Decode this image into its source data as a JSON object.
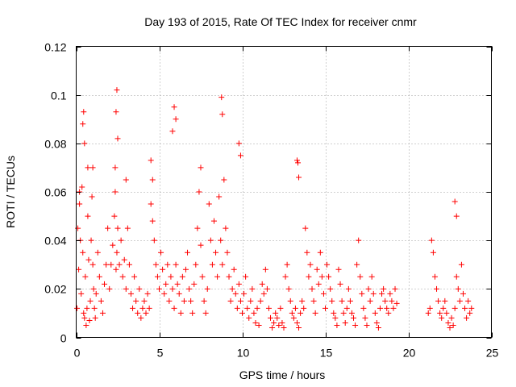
{
  "chart_data": {
    "type": "scatter",
    "title": "Day 193 of 2015, Rate Of TEC Index for receiver cnmr",
    "xlabel": "GPS time / hours",
    "ylabel": "ROTI / TECUs",
    "xlim": [
      0,
      25
    ],
    "ylim": [
      0,
      0.12
    ],
    "x_ticks": [
      0,
      5,
      10,
      15,
      20,
      25
    ],
    "y_ticks": [
      0,
      0.02,
      0.04,
      0.06,
      0.08,
      0.1,
      0.12
    ],
    "x_tick_labels": [
      "0",
      "5",
      "10",
      "15",
      "20",
      "25"
    ],
    "y_tick_labels": [
      "0",
      "0.02",
      "0.04",
      "0.06",
      "0.08",
      "0.1",
      "0.12"
    ],
    "grid": true,
    "marker": "+",
    "colors": {
      "points": "#ff0000",
      "grid": "#a0a0a0",
      "axis": "#000000"
    },
    "series": [
      {
        "x": [
          0.05,
          0.1,
          0.15,
          0.2,
          0.25,
          0.3,
          0.35,
          0.4,
          0.45,
          0.5,
          0.55,
          0.6,
          0.65,
          0.7,
          0.75,
          0.8,
          0.85,
          0.9,
          0.95,
          1.0,
          1.05,
          1.1,
          1.15,
          1.2,
          1.3,
          1.4,
          1.5,
          1.6,
          1.7,
          1.8,
          1.9,
          2.0,
          2.1,
          2.2,
          2.3,
          2.35,
          2.4,
          2.45,
          2.5,
          2.6,
          2.7,
          2.8,
          2.9,
          3.0,
          3.1,
          3.2,
          3.3,
          3.4,
          3.5,
          3.6,
          3.7,
          3.8,
          3.9,
          4.0,
          4.1,
          4.2,
          4.3,
          4.4,
          4.5,
          4.6,
          4.7,
          4.8,
          4.9,
          5.0,
          5.1,
          5.2,
          5.3,
          5.4,
          5.5,
          5.6,
          5.7,
          5.8,
          5.9,
          6.0,
          6.1,
          6.2,
          6.3,
          6.4,
          6.5,
          6.6,
          6.7,
          6.8,
          6.9,
          7.0,
          7.1,
          7.2,
          7.3,
          7.4,
          7.5,
          7.6,
          7.7,
          7.8,
          7.9,
          8.0,
          8.1,
          8.2,
          8.3,
          8.4,
          8.5,
          8.6,
          8.7,
          8.8,
          8.9,
          9.0,
          9.1,
          9.2,
          9.3,
          9.4,
          9.5,
          9.6,
          9.7,
          9.8,
          9.9,
          10.0,
          10.1,
          10.2,
          10.3,
          10.4,
          10.5,
          10.6,
          10.7,
          10.8,
          10.9,
          11.0,
          11.1,
          11.2,
          11.3,
          11.4,
          11.5,
          11.6,
          11.7,
          11.8,
          11.9,
          12.0,
          12.1,
          12.2,
          12.3,
          12.4,
          12.5,
          12.6,
          12.7,
          12.8,
          12.9,
          13.0,
          13.1,
          13.2,
          13.3,
          13.4,
          13.5,
          13.6,
          13.7,
          13.8,
          13.9,
          14.0,
          14.1,
          14.2,
          14.3,
          14.4,
          14.5,
          14.6,
          14.7,
          14.8,
          14.9,
          15.0,
          15.1,
          15.2,
          15.3,
          15.4,
          15.5,
          15.6,
          15.7,
          15.8,
          15.9,
          16.0,
          16.1,
          16.2,
          16.3,
          16.4,
          16.5,
          16.6,
          16.7,
          16.8,
          16.9,
          17.0,
          17.1,
          17.2,
          17.3,
          17.4,
          17.5,
          17.6,
          17.7,
          17.8,
          17.9,
          18.0,
          18.1,
          18.2,
          18.3,
          18.4,
          18.5,
          18.6,
          18.7,
          18.8,
          18.9,
          19.0,
          19.1,
          19.2,
          19.3,
          21.2,
          21.3,
          21.4,
          21.5,
          21.6,
          21.7,
          21.8,
          21.9,
          22.0,
          22.1,
          22.2,
          22.3,
          22.4,
          22.5,
          22.6,
          22.7,
          22.8,
          22.9,
          23.0,
          23.1,
          23.2,
          23.3,
          23.4,
          23.5,
          23.6,
          23.7,
          23.8,
          0.4,
          0.45,
          0.5,
          2.4,
          2.45,
          2.5,
          2.35,
          5.8,
          5.9,
          6.0,
          8.75,
          8.8,
          9.8,
          9.9,
          13.3,
          13.35,
          13.4,
          22.8,
          22.9,
          4.5,
          4.6,
          7.5,
          1.0,
          0.7,
          3.0,
          0.2
        ],
        "y": [
          0.012,
          0.045,
          0.028,
          0.055,
          0.04,
          0.018,
          0.062,
          0.035,
          0.01,
          0.008,
          0.025,
          0.005,
          0.012,
          0.05,
          0.032,
          0.007,
          0.015,
          0.04,
          0.058,
          0.03,
          0.02,
          0.012,
          0.008,
          0.018,
          0.035,
          0.025,
          0.015,
          0.01,
          0.022,
          0.03,
          0.045,
          0.02,
          0.03,
          0.038,
          0.05,
          0.06,
          0.028,
          0.035,
          0.045,
          0.03,
          0.04,
          0.025,
          0.032,
          0.02,
          0.045,
          0.03,
          0.018,
          0.012,
          0.025,
          0.015,
          0.01,
          0.02,
          0.008,
          0.012,
          0.015,
          0.01,
          0.018,
          0.012,
          0.055,
          0.048,
          0.04,
          0.03,
          0.025,
          0.02,
          0.035,
          0.028,
          0.018,
          0.022,
          0.03,
          0.015,
          0.025,
          0.02,
          0.012,
          0.03,
          0.022,
          0.018,
          0.01,
          0.025,
          0.015,
          0.028,
          0.035,
          0.02,
          0.015,
          0.01,
          0.022,
          0.03,
          0.045,
          0.06,
          0.038,
          0.025,
          0.015,
          0.01,
          0.02,
          0.055,
          0.04,
          0.03,
          0.048,
          0.035,
          0.025,
          0.058,
          0.04,
          0.03,
          0.065,
          0.045,
          0.035,
          0.025,
          0.015,
          0.02,
          0.028,
          0.018,
          0.012,
          0.022,
          0.015,
          0.01,
          0.018,
          0.025,
          0.012,
          0.008,
          0.015,
          0.02,
          0.01,
          0.006,
          0.012,
          0.005,
          0.015,
          0.022,
          0.018,
          0.028,
          0.02,
          0.012,
          0.008,
          0.004,
          0.006,
          0.01,
          0.008,
          0.005,
          0.012,
          0.006,
          0.004,
          0.025,
          0.03,
          0.02,
          0.015,
          0.01,
          0.008,
          0.012,
          0.006,
          0.004,
          0.01,
          0.015,
          0.012,
          0.045,
          0.035,
          0.025,
          0.03,
          0.02,
          0.015,
          0.01,
          0.028,
          0.022,
          0.035,
          0.025,
          0.018,
          0.012,
          0.03,
          0.025,
          0.02,
          0.015,
          0.01,
          0.008,
          0.005,
          0.028,
          0.022,
          0.015,
          0.01,
          0.006,
          0.012,
          0.02,
          0.015,
          0.01,
          0.008,
          0.005,
          0.03,
          0.04,
          0.025,
          0.018,
          0.012,
          0.008,
          0.005,
          0.02,
          0.015,
          0.025,
          0.018,
          0.01,
          0.006,
          0.004,
          0.012,
          0.018,
          0.02,
          0.015,
          0.012,
          0.01,
          0.018,
          0.015,
          0.012,
          0.02,
          0.014,
          0.01,
          0.012,
          0.04,
          0.035,
          0.025,
          0.02,
          0.015,
          0.01,
          0.008,
          0.012,
          0.015,
          0.01,
          0.006,
          0.004,
          0.008,
          0.005,
          0.012,
          0.025,
          0.02,
          0.015,
          0.03,
          0.018,
          0.012,
          0.008,
          0.015,
          0.01,
          0.012,
          0.088,
          0.093,
          0.08,
          0.093,
          0.102,
          0.082,
          0.07,
          0.085,
          0.095,
          0.09,
          0.099,
          0.092,
          0.08,
          0.075,
          0.073,
          0.072,
          0.066,
          0.056,
          0.05,
          0.073,
          0.065,
          0.07,
          0.07,
          0.07,
          0.065,
          0.06
        ]
      }
    ]
  }
}
